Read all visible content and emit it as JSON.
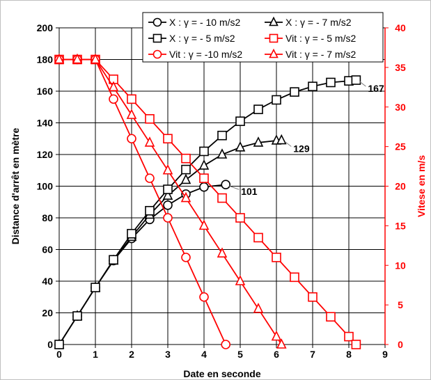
{
  "chart_data": {
    "type": "line",
    "title": "",
    "xlabel": "Date en seconde",
    "ylabel": "Distance d'arrêt en mètre",
    "y2label": "Vitese en m/s",
    "xlim": [
      0,
      9
    ],
    "ylim": [
      0,
      200
    ],
    "y2lim": [
      0,
      40
    ],
    "x_ticks": [
      0,
      1,
      2,
      3,
      4,
      5,
      6,
      7,
      8,
      9
    ],
    "y_ticks": [
      0,
      20,
      40,
      60,
      80,
      100,
      120,
      140,
      160,
      180,
      200
    ],
    "y2_ticks": [
      0,
      5,
      10,
      15,
      20,
      25,
      30,
      35,
      40
    ],
    "grid": true,
    "legend_position": "top-right",
    "colors": {
      "distance": "#000000",
      "speed": "#ff0000"
    },
    "series": [
      {
        "name": "X : γ = - 10 m/s2",
        "axis": "left",
        "color": "#000000",
        "marker": "circle",
        "x": [
          0,
          0.5,
          1,
          1.5,
          2,
          2.5,
          3,
          3.5,
          4,
          4.6
        ],
        "y": [
          0,
          18,
          36,
          53,
          67,
          79,
          88,
          95,
          99.5,
          101
        ]
      },
      {
        "name": "X : γ = - 7 m/s2",
        "axis": "left",
        "color": "#000000",
        "marker": "triangle",
        "x": [
          0,
          0.5,
          1,
          1.5,
          2,
          2.5,
          3,
          3.5,
          4,
          4.5,
          5,
          5.5,
          6,
          6.14
        ],
        "y": [
          0,
          18,
          36,
          53,
          68,
          82,
          94,
          104,
          113,
          120,
          124.5,
          127.5,
          128.8,
          129
        ]
      },
      {
        "name": "X : γ = - 5 m/s2",
        "axis": "left",
        "color": "#000000",
        "marker": "square",
        "x": [
          0,
          0.5,
          1,
          1.5,
          2,
          2.5,
          3,
          3.5,
          4,
          4.5,
          5,
          5.5,
          6,
          6.5,
          7,
          7.5,
          8,
          8.2
        ],
        "y": [
          0,
          18,
          36,
          53.5,
          70,
          84.5,
          98,
          110.5,
          122,
          132,
          141,
          148.5,
          154.5,
          159.5,
          163,
          165.5,
          166.5,
          167
        ]
      },
      {
        "name": "Vit : γ = - 5 m/s2",
        "axis": "right",
        "color": "#ff0000",
        "marker": "square",
        "x": [
          0,
          0.5,
          1,
          1.5,
          2,
          2.5,
          3,
          3.5,
          4,
          4.5,
          5,
          5.5,
          6,
          6.5,
          7,
          7.5,
          8,
          8.2
        ],
        "y": [
          36,
          36,
          36,
          33.5,
          31,
          28.5,
          26,
          23.5,
          21,
          18.5,
          16,
          13.5,
          11,
          8.5,
          6,
          3.5,
          1,
          0
        ]
      },
      {
        "name": "Vit : γ = -10 m/s2",
        "axis": "right",
        "color": "#ff0000",
        "marker": "circle",
        "x": [
          0,
          0.5,
          1,
          1.5,
          2,
          2.5,
          3,
          3.5,
          4,
          4.6
        ],
        "y": [
          36,
          36,
          36,
          31,
          26,
          21,
          16,
          11,
          6,
          0
        ]
      },
      {
        "name": "Vit : γ = - 7 m/s2",
        "axis": "right",
        "color": "#ff0000",
        "marker": "triangle",
        "x": [
          0,
          0.5,
          1,
          1.5,
          2,
          2.5,
          3,
          3.5,
          4,
          4.5,
          5,
          5.5,
          6,
          6.14
        ],
        "y": [
          36,
          36,
          36,
          32.5,
          29,
          25.5,
          22,
          18.5,
          15,
          11.5,
          8,
          4.5,
          1,
          0
        ]
      }
    ],
    "annotations": [
      {
        "text": "101",
        "x": 4.6,
        "y": 101
      },
      {
        "text": "129",
        "x": 6.14,
        "y": 129
      },
      {
        "text": "167",
        "x": 8.2,
        "y": 167
      }
    ],
    "legend": [
      {
        "label": "X : γ = - 10 m/s2",
        "series": 0
      },
      {
        "label": "X : γ = - 7 m/s2",
        "series": 1
      },
      {
        "label": "X : γ = - 5 m/s2",
        "series": 2
      },
      {
        "label": "Vit : γ = - 5 m/s2",
        "series": 3
      },
      {
        "label": "Vit : γ = -10 m/s2",
        "series": 4
      },
      {
        "label": "Vit : γ = - 7 m/s2",
        "series": 5
      }
    ]
  }
}
